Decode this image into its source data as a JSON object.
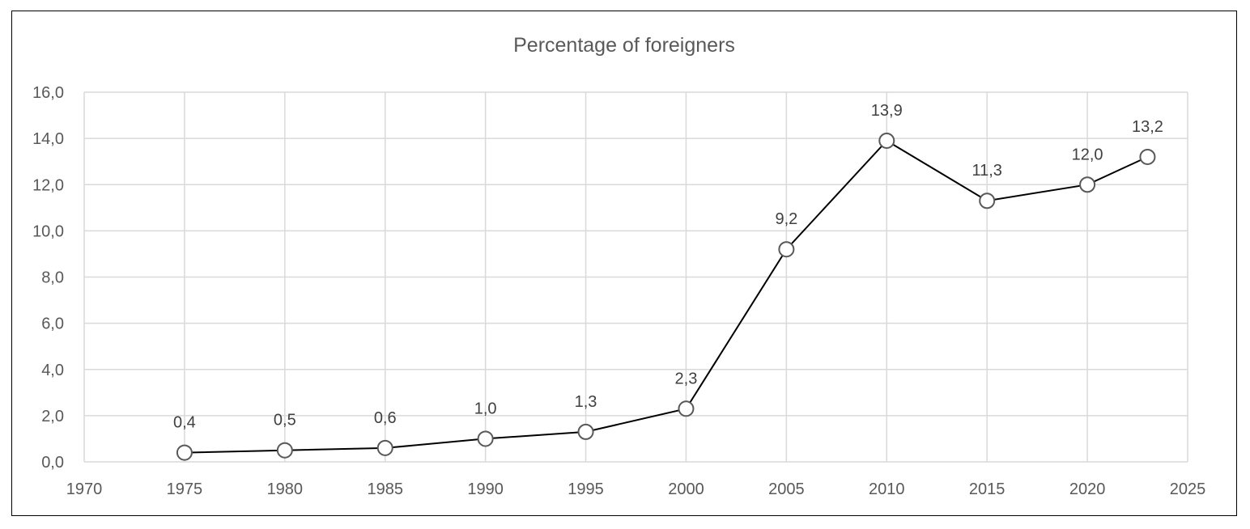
{
  "chart_data": {
    "type": "scatter",
    "title": "Percentage of foreigners",
    "xlabel": "",
    "ylabel": "",
    "xlim": [
      1970,
      2025
    ],
    "ylim": [
      0,
      16
    ],
    "x_ticks": [
      "1970",
      "1975",
      "1980",
      "1985",
      "1990",
      "1995",
      "2000",
      "2005",
      "2010",
      "2015",
      "2020",
      "2025"
    ],
    "y_ticks": [
      "0,0",
      "2,0",
      "4,0",
      "6,0",
      "8,0",
      "10,0",
      "12,0",
      "14,0",
      "16,0"
    ],
    "grid": true,
    "legend": "none",
    "series": [
      {
        "x": [
          1975,
          1980,
          1985,
          1990,
          1995,
          2000,
          2005,
          2010,
          2015,
          2020,
          2023
        ],
        "y": [
          0.4,
          0.5,
          0.6,
          1.0,
          1.3,
          2.3,
          9.2,
          13.9,
          11.3,
          12.0,
          13.2
        ],
        "labels": [
          "0,4",
          "0,5",
          "0,6",
          "1,0",
          "1,3",
          "2,3",
          "9,2",
          "13,9",
          "11,3",
          "12,0",
          "13,2"
        ],
        "marker": "open-circle",
        "line": "straight"
      }
    ],
    "colors": {
      "line": "#000000",
      "marker": "#595959",
      "grid": "#d9d9d9",
      "text": "#595959",
      "data_label": "#404040"
    }
  }
}
